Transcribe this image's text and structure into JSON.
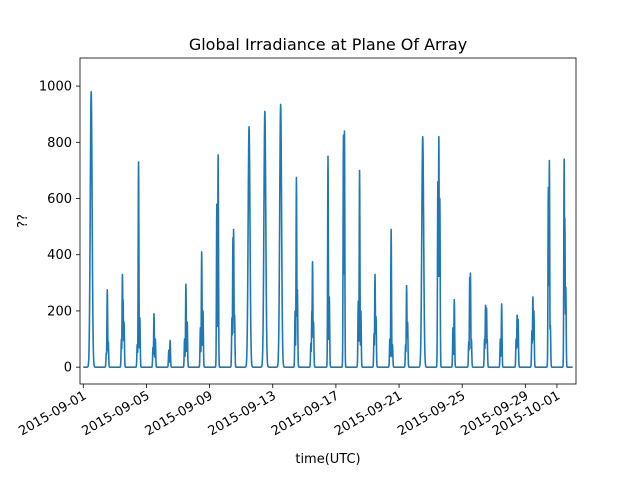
{
  "chart_data": {
    "type": "line",
    "title": "Global Irradiance at Plane Of Array",
    "xlabel": "time(UTC)",
    "ylabel": "??",
    "xlim": [
      "2015-08-31T19:00",
      "2015-10-02T05:00"
    ],
    "ylim": [
      -60,
      1100
    ],
    "x_ticks": [
      "2015-09-01",
      "2015-09-05",
      "2015-09-09",
      "2015-09-13",
      "2015-09-17",
      "2015-09-21",
      "2015-09-25",
      "2015-09-29",
      "2015-10-01"
    ],
    "y_ticks": [
      0,
      200,
      400,
      600,
      800,
      1000
    ],
    "series": [
      {
        "color": "#1f77b4",
        "daily_peaks": [
          {
            "date": "2015-09-01",
            "peaks": [
              [
                12,
                980
              ]
            ]
          },
          {
            "date": "2015-09-02",
            "peaks": [
              [
                11,
                50
              ],
              [
                12.5,
                275
              ],
              [
                14,
                90
              ]
            ]
          },
          {
            "date": "2015-09-03",
            "peaks": [
              [
                10,
                100
              ],
              [
                11.5,
                330
              ],
              [
                12.5,
                240
              ],
              [
                14,
                160
              ]
            ]
          },
          {
            "date": "2015-09-04",
            "peaks": [
              [
                10,
                80
              ],
              [
                12,
                730
              ],
              [
                14,
                175
              ]
            ]
          },
          {
            "date": "2015-09-05",
            "peaks": [
              [
                10,
                70
              ],
              [
                11.5,
                190
              ],
              [
                13.5,
                100
              ]
            ]
          },
          {
            "date": "2015-09-06",
            "peaks": [
              [
                10,
                60
              ],
              [
                12,
                95
              ]
            ]
          },
          {
            "date": "2015-09-07",
            "peaks": [
              [
                10,
                100
              ],
              [
                12,
                295
              ],
              [
                14,
                160
              ]
            ]
          },
          {
            "date": "2015-09-08",
            "peaks": [
              [
                10,
                140
              ],
              [
                12,
                410
              ],
              [
                14,
                200
              ]
            ]
          },
          {
            "date": "2015-09-09",
            "peaks": [
              [
                11,
                580
              ],
              [
                13,
                755
              ]
            ]
          },
          {
            "date": "2015-09-10",
            "peaks": [
              [
                10,
                175
              ],
              [
                11.5,
                460
              ],
              [
                12.5,
                490
              ],
              [
                14,
                185
              ]
            ]
          },
          {
            "date": "2015-09-11",
            "peaks": [
              [
                12,
                855
              ]
            ]
          },
          {
            "date": "2015-09-12",
            "peaks": [
              [
                12,
                910
              ]
            ]
          },
          {
            "date": "2015-09-13",
            "peaks": [
              [
                12,
                935
              ]
            ]
          },
          {
            "date": "2015-09-14",
            "peaks": [
              [
                10,
                200
              ],
              [
                12,
                675
              ],
              [
                13.5,
                275
              ]
            ]
          },
          {
            "date": "2015-09-15",
            "peaks": [
              [
                10,
                85
              ],
              [
                11.5,
                200
              ],
              [
                12.5,
                375
              ],
              [
                14,
                160
              ]
            ]
          },
          {
            "date": "2015-09-16",
            "peaks": [
              [
                12,
                750
              ],
              [
                14,
                250
              ]
            ]
          },
          {
            "date": "2015-09-17",
            "peaks": [
              [
                11.5,
                825
              ],
              [
                13,
                840
              ]
            ]
          },
          {
            "date": "2015-09-18",
            "peaks": [
              [
                10,
                235
              ],
              [
                12,
                700
              ],
              [
                14,
                200
              ]
            ]
          },
          {
            "date": "2015-09-19",
            "peaks": [
              [
                10,
                120
              ],
              [
                11.5,
                330
              ],
              [
                13,
                180
              ]
            ]
          },
          {
            "date": "2015-09-20",
            "peaks": [
              [
                10,
                100
              ],
              [
                12,
                490
              ],
              [
                14,
                80
              ]
            ]
          },
          {
            "date": "2015-09-21",
            "peaks": [
              [
                10,
                80
              ],
              [
                11.5,
                290
              ],
              [
                13,
                160
              ]
            ]
          },
          {
            "date": "2015-09-22",
            "peaks": [
              [
                12,
                820
              ]
            ]
          },
          {
            "date": "2015-09-23",
            "peaks": [
              [
                11,
                660
              ],
              [
                12.5,
                820
              ],
              [
                14,
                600
              ]
            ]
          },
          {
            "date": "2015-09-24",
            "peaks": [
              [
                10,
                140
              ],
              [
                12,
                240
              ]
            ]
          },
          {
            "date": "2015-09-25",
            "peaks": [
              [
                10,
                90
              ],
              [
                11.5,
                320
              ],
              [
                12.5,
                335
              ],
              [
                14,
                100
              ]
            ]
          },
          {
            "date": "2015-09-26",
            "peaks": [
              [
                10,
                100
              ],
              [
                11.5,
                220
              ],
              [
                13,
                210
              ],
              [
                14,
                100
              ]
            ]
          },
          {
            "date": "2015-09-27",
            "peaks": [
              [
                10,
                100
              ],
              [
                12,
                225
              ]
            ]
          },
          {
            "date": "2015-09-28",
            "peaks": [
              [
                10,
                100
              ],
              [
                11.5,
                185
              ],
              [
                13,
                170
              ]
            ]
          },
          {
            "date": "2015-09-29",
            "peaks": [
              [
                10,
                130
              ],
              [
                11.5,
                250
              ],
              [
                13,
                200
              ]
            ]
          },
          {
            "date": "2015-09-30",
            "peaks": [
              [
                11,
                640
              ],
              [
                12.5,
                735
              ],
              [
                14,
                150
              ]
            ]
          },
          {
            "date": "2015-10-01",
            "peaks": [
              [
                11,
                740
              ],
              [
                12,
                530
              ],
              [
                13.5,
                285
              ]
            ]
          }
        ]
      }
    ]
  }
}
